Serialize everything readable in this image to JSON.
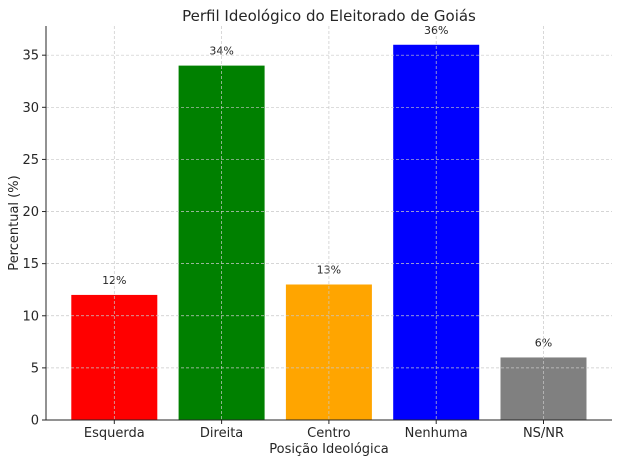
{
  "chart_data": {
    "type": "bar",
    "title": "Perfil Ideológico do Eleitorado de Goiás",
    "xlabel": "Posição Ideológica",
    "ylabel": "Percentual (%)",
    "categories": [
      "Esquerda",
      "Direita",
      "Centro",
      "Nenhuma",
      "NS/NR"
    ],
    "values": [
      12,
      34,
      13,
      36,
      6
    ],
    "data_labels": [
      "12%",
      "34%",
      "13%",
      "36%",
      "6%"
    ],
    "colors": [
      "#ff0000",
      "#008000",
      "#ffa500",
      "#0000ff",
      "#808080"
    ],
    "ylim": [
      0,
      37.8
    ],
    "yticks": [
      0,
      5,
      10,
      15,
      20,
      25,
      30,
      35
    ],
    "grid": true
  }
}
